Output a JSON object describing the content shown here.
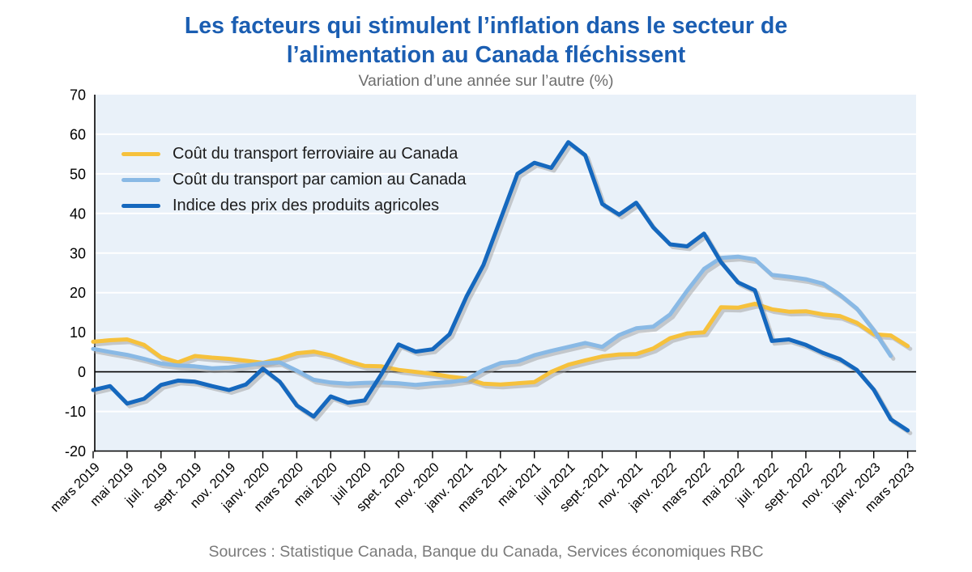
{
  "header": {
    "title_line1": "Les facteurs qui stimulent l’inflation dans le secteur de",
    "title_line2": "l’alimentation au Canada fléchissent",
    "subtitle": "Variation d’une année sur l’autre (%)"
  },
  "source": "Sources : Statistique Canada, Banque du Canada, Services économiques RBC",
  "colors": {
    "title": "#1B5EB2",
    "subtitle_text": "#6E6E6E",
    "source_text": "#7A7A7A",
    "plot_bg": "#E9F1F9",
    "grid": "#FFFFFF",
    "axis": "#000000",
    "line_shadow": "#9E9E9E",
    "ferroviaire": "#F6C13C",
    "camion": "#89B9E5",
    "agricoles": "#1568BE"
  },
  "chart_data": {
    "type": "line",
    "title": "Les facteurs qui stimulent l’inflation dans le secteur de l’alimentation au Canada fléchissent",
    "subtitle": "Variation d’une année sur l’autre (%)",
    "xlabel": "",
    "ylabel": "Variation d’une année sur l’autre (%)",
    "ylim": [
      -20,
      70
    ],
    "y_ticks": [
      70,
      60,
      50,
      40,
      30,
      20,
      10,
      0,
      -10,
      -20
    ],
    "grid": "horizontal white gridlines on light blue panel, black zero line",
    "legend_position": "top-left inside plot",
    "frequency": "monthly",
    "x_start": "mars 2019",
    "x_end": "mars 2023",
    "x_tick_labels": [
      "mars 2019",
      "mai 2019",
      "juil. 2019",
      "sept. 2019",
      "nov. 2019",
      "janv. 2020",
      "mars 2020",
      "mai 2020",
      "juil 2020",
      "spet. 2020",
      "nov. 2020",
      "janv. 2021",
      "mars 2021",
      "mai 2021",
      "juil 2021",
      "sept.-2021",
      "nov. 2021",
      "janv. 2022",
      "mars 2022",
      "mai 2022",
      "juil. 2022",
      "sept. 2022",
      "nov. 2022",
      "janv. 2023",
      "mars 2023"
    ],
    "series": [
      {
        "id": "ferroviaire",
        "name": "Coût du transport ferroviaire au Canada",
        "color": "#F6C13C",
        "values": [
          7.6,
          8.0,
          8.2,
          6.8,
          3.7,
          2.4,
          4.0,
          3.6,
          3.3,
          2.8,
          2.3,
          3.3,
          4.7,
          5.1,
          4.2,
          2.7,
          1.5,
          1.4,
          0.5,
          0.0,
          -0.5,
          -1.2,
          -1.7,
          -3.0,
          -3.2,
          -2.9,
          -2.6,
          0.0,
          1.8,
          2.9,
          3.9,
          4.4,
          4.5,
          5.9,
          8.5,
          9.7,
          10.0,
          16.3,
          16.2,
          17.2,
          15.8,
          15.2,
          15.3,
          14.5,
          14.1,
          12.4,
          9.5,
          9.2,
          6.5
        ]
      },
      {
        "id": "camion",
        "name": "Coût du transport par camion au Canada",
        "color": "#89B9E5",
        "values": [
          5.8,
          5.0,
          4.3,
          3.3,
          2.1,
          1.6,
          1.4,
          0.9,
          1.1,
          1.6,
          2.2,
          2.4,
          0.3,
          -2.0,
          -2.7,
          -3.0,
          -2.8,
          -2.7,
          -2.9,
          -3.3,
          -2.9,
          -2.6,
          -2.0,
          0.5,
          2.2,
          2.6,
          4.2,
          5.3,
          6.3,
          7.3,
          6.3,
          9.3,
          11.0,
          11.4,
          14.5,
          20.5,
          26.0,
          28.8,
          29.1,
          28.4,
          24.5,
          24.0,
          23.4,
          22.3,
          19.5,
          16.0,
          10.5,
          4.0
        ]
      },
      {
        "id": "agricoles",
        "name": "Indice des prix des produits agricoles",
        "color": "#1568BE",
        "values": [
          -4.6,
          -3.6,
          -8.0,
          -6.8,
          -3.3,
          -2.2,
          -2.5,
          -3.6,
          -4.6,
          -3.2,
          0.8,
          -2.5,
          -8.5,
          -11.3,
          -6.2,
          -7.8,
          -7.2,
          -0.5,
          6.9,
          5.1,
          5.7,
          9.5,
          19.0,
          27.0,
          38.5,
          50.0,
          52.8,
          51.5,
          58.0,
          54.7,
          42.4,
          39.7,
          42.7,
          36.5,
          32.2,
          31.7,
          34.9,
          27.7,
          22.6,
          20.6,
          7.8,
          8.2,
          6.8,
          4.8,
          3.2,
          0.5,
          -4.5,
          -12.0,
          -14.8
        ]
      }
    ]
  }
}
